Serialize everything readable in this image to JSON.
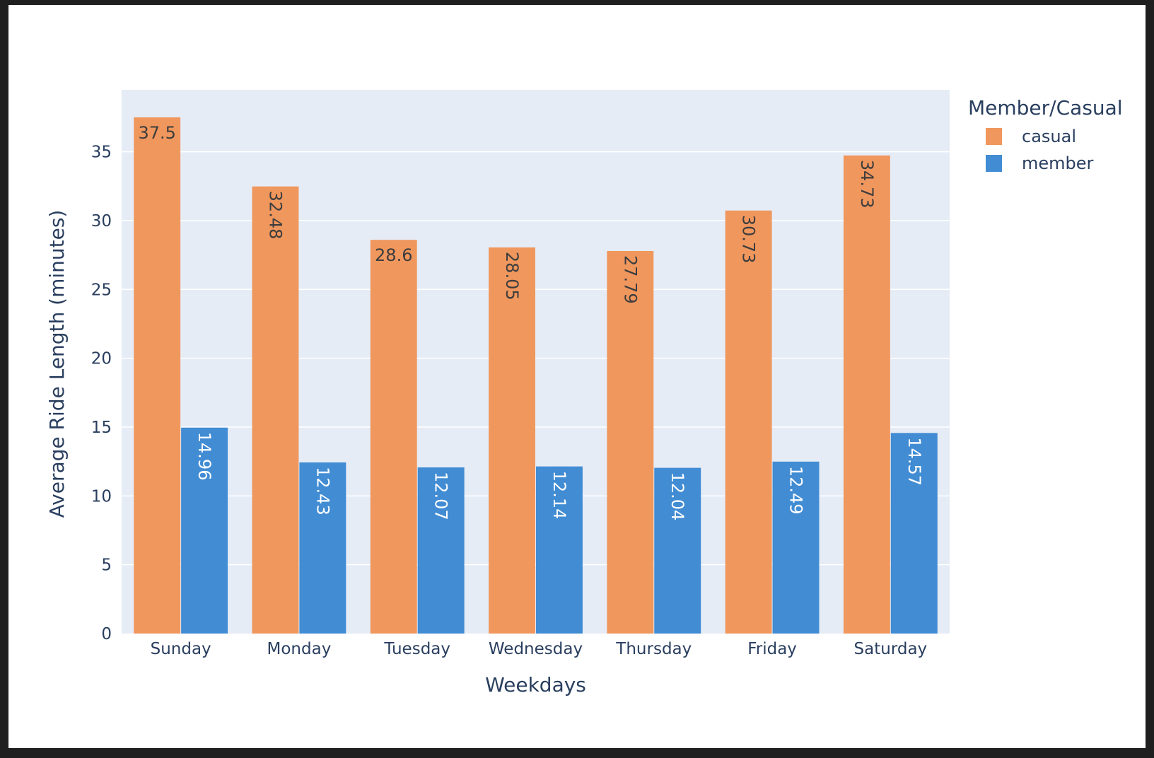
{
  "chart_data": {
    "type": "bar",
    "barmode": "group",
    "categories": [
      "Sunday",
      "Monday",
      "Tuesday",
      "Wednesday",
      "Thursday",
      "Friday",
      "Saturday"
    ],
    "series": [
      {
        "name": "casual",
        "color": "#f0975e",
        "label_color": "#3d3d3d",
        "values": [
          37.5,
          32.48,
          28.6,
          28.05,
          27.79,
          30.73,
          34.73
        ],
        "labels": [
          "37.5",
          "32.48",
          "28.6",
          "28.05",
          "27.79",
          "30.73",
          "34.73"
        ]
      },
      {
        "name": "member",
        "color": "#418cd3",
        "label_color": "#ffffff",
        "values": [
          14.96,
          12.43,
          12.07,
          12.14,
          12.04,
          12.49,
          14.57
        ],
        "labels": [
          "14.96",
          "12.43",
          "12.07",
          "12.14",
          "12.04",
          "12.49",
          "14.57"
        ]
      }
    ],
    "xlabel": "Weekdays",
    "ylabel": "Average Ride Length (minutes)",
    "ylim": [
      0,
      39.5
    ],
    "yticks": [
      0,
      5,
      10,
      15,
      20,
      25,
      30,
      35
    ],
    "grid": true,
    "plot_background": "#e5ecf6",
    "legend": {
      "title": "Member/Casual",
      "placement": "top-right, outside plot"
    }
  }
}
